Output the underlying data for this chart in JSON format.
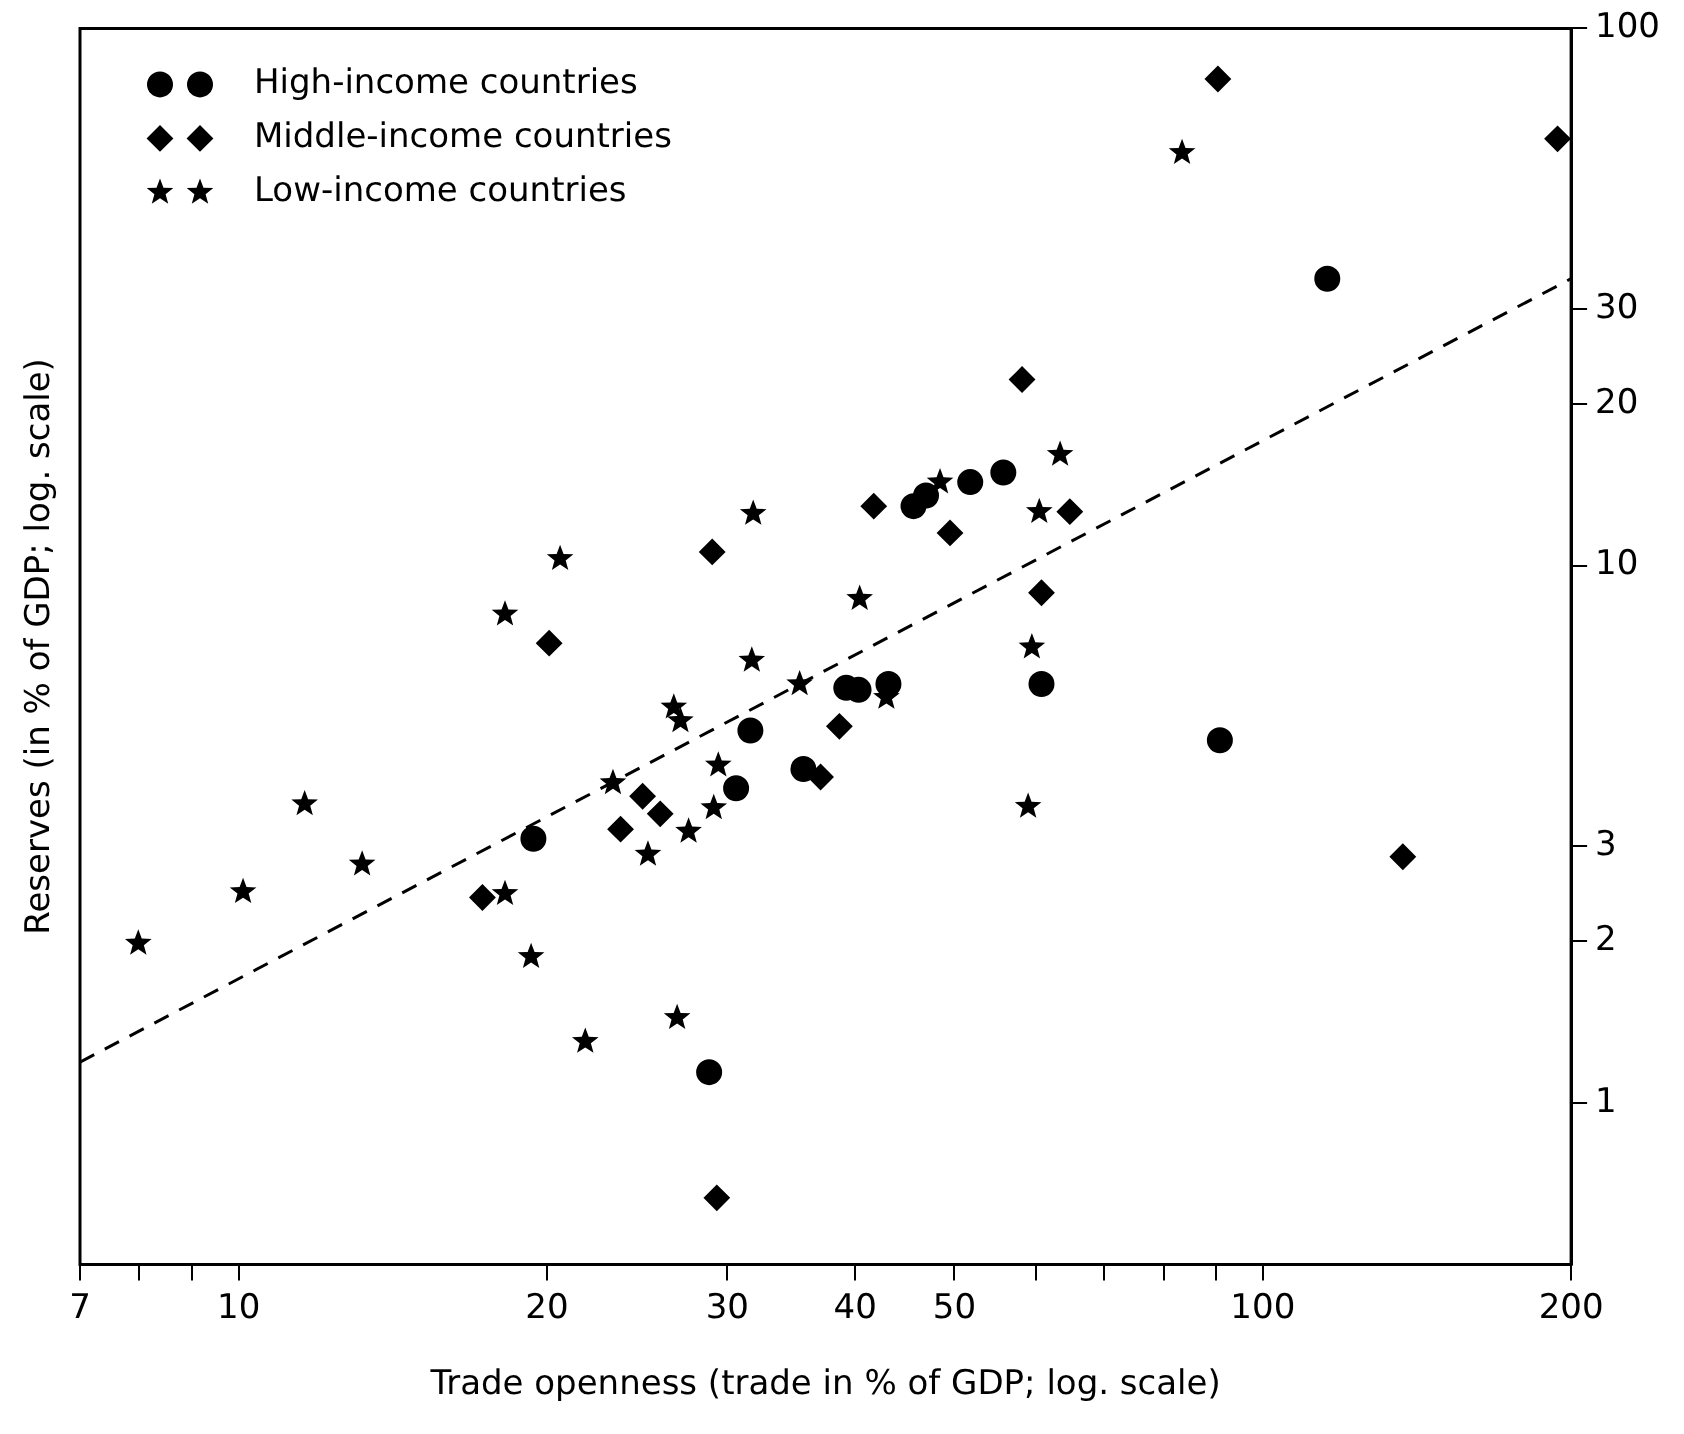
{
  "chart_data": {
    "type": "scatter",
    "xlabel": "Trade openness (trade in % of GDP; log. scale)",
    "ylabel": "Reserves (in % of GDP; log. scale)",
    "log": "xy",
    "grid": false,
    "legend": "top left",
    "xlim": [
      7,
      200
    ],
    "xticks": [
      7,
      {
        "value": 8,
        "label": null
      },
      {
        "value": 9,
        "label": null
      },
      10,
      20,
      30,
      40,
      50,
      {
        "value": 60,
        "label": null
      },
      {
        "value": 70,
        "label": null
      },
      {
        "value": 80,
        "label": null
      },
      {
        "value": 90,
        "label": null
      },
      100,
      200
    ],
    "ylim": [
      0.5,
      100
    ],
    "yticks": [
      1,
      2,
      3,
      10,
      20,
      30,
      100
    ],
    "series": [
      {
        "name": "High-income countries",
        "color": "#000000",
        "marker": "circle",
        "x": [
          19.4,
          31.6,
          30.6,
          35.6,
          39.2,
          40.3,
          43.1,
          60.8,
          90.8,
          28.8,
          45.6,
          46.9,
          51.8,
          55.8,
          115.6
        ],
        "values": [
          3.1,
          4.93,
          3.85,
          4.18,
          5.92,
          5.87,
          6.02,
          6.02,
          4.73,
          1.14,
          12.9,
          13.5,
          14.3,
          14.9,
          34.2
        ]
      },
      {
        "name": "Middle-income countries",
        "color": "#000000",
        "marker": "diamond",
        "x": [
          17.3,
          20.1,
          29.0,
          23.6,
          24.8,
          25.8,
          29.3,
          37.0,
          38.6,
          41.7,
          49.5,
          58.2,
          60.8,
          64.8,
          90.4,
          194,
          137
        ],
        "values": [
          2.41,
          7.17,
          10.6,
          3.23,
          3.72,
          3.45,
          0.665,
          4.04,
          5.02,
          12.9,
          11.5,
          22.2,
          8.9,
          12.6,
          80.5,
          62.3,
          2.87
        ]
      },
      {
        "name": "Low-income countries",
        "color": "#000000",
        "marker": "star",
        "x": [
          7.98,
          10.1,
          11.6,
          13.2,
          18.2,
          19.3,
          21.8,
          26.8,
          23.2,
          25.1,
          27.5,
          26.6,
          27.0,
          29.1,
          29.4,
          35.3,
          20.6,
          18.2,
          31.8,
          31.7,
          40.4,
          48.4,
          60.5,
          63.4,
          59.5,
          83.4,
          59.0,
          42.9
        ],
        "values": [
          1.98,
          2.47,
          3.6,
          2.78,
          2.45,
          1.87,
          1.3,
          1.44,
          3.94,
          2.9,
          3.2,
          5.45,
          5.14,
          3.54,
          4.25,
          6.02,
          10.3,
          8.12,
          12.5,
          6.66,
          8.68,
          14.3,
          12.6,
          16.1,
          7.05,
          58.7,
          3.56,
          5.68
        ]
      },
      {
        "type": "line",
        "color": "#000000",
        "marker": "none",
        "line_style": "dashed",
        "x": [
          7,
          200
        ],
        "values": [
          1.19,
          34.2
        ]
      }
    ]
  }
}
